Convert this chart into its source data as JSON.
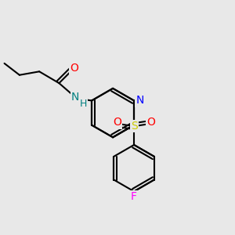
{
  "background_color": "#e8e8e8",
  "bond_color": "#000000",
  "bond_width": 1.5,
  "atom_colors": {
    "O": "#ff0000",
    "N_amine": "#008080",
    "N_ring": "#0000ff",
    "S": "#cccc00",
    "F": "#ff00ff",
    "C": "#000000",
    "H": "#008080"
  },
  "font_size_atom": 10,
  "font_size_small": 8
}
